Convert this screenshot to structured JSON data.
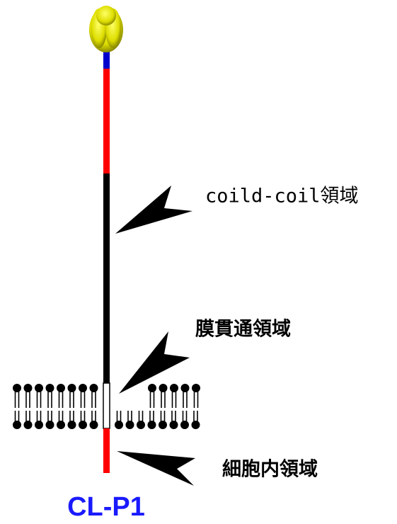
{
  "diagram": {
    "title": "CL-P1",
    "labels": {
      "coiled_coil": "coild-coil領域",
      "transmembrane": "膜貫通領域",
      "intracellular": "細胞内領域"
    }
  }
}
